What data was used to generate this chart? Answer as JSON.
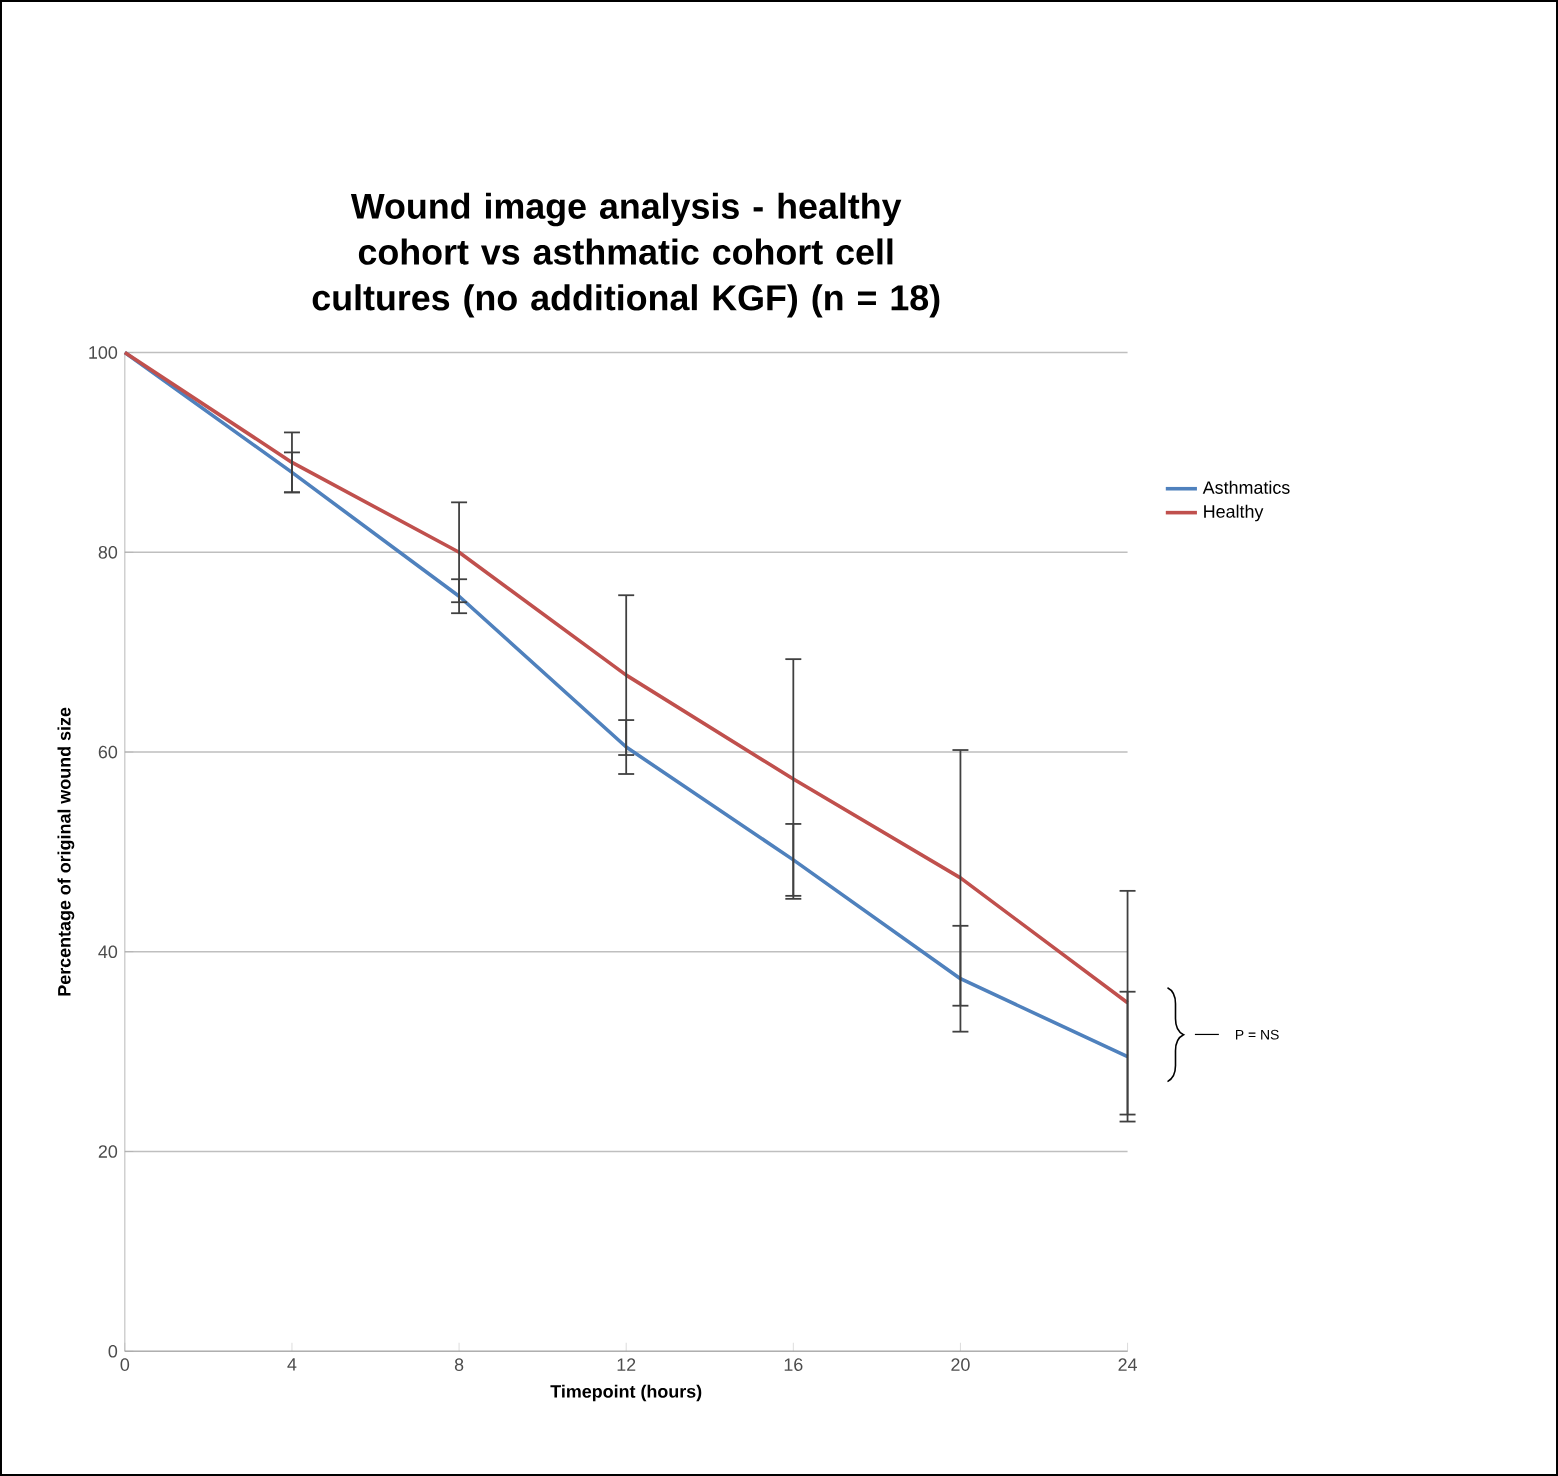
{
  "chart_data": {
    "type": "line",
    "title": "Wound image analysis - healthy cohort vs asthmatic cohort cell cultures (no additional KGF) (n = 18)",
    "xlabel": "Timepoint (hours)",
    "ylabel": "Percentage of original wound size",
    "x": [
      0,
      4,
      8,
      12,
      16,
      20,
      24
    ],
    "series": [
      {
        "name": "Asthmatics",
        "color": "#4f81bd",
        "values": [
          100,
          88,
          75.6,
          60.5,
          49.2,
          37.3,
          29.5
        ],
        "errors": [
          null,
          2,
          1.7,
          2.7,
          3.6,
          5.3,
          6.5
        ]
      },
      {
        "name": "Healthy",
        "color": "#c0504d",
        "values": [
          100,
          89,
          80,
          67.7,
          57.3,
          47.4,
          34.9
        ],
        "errors": [
          null,
          3,
          5,
          8,
          12,
          12.8,
          11.2
        ]
      }
    ],
    "xlim": [
      0,
      24
    ],
    "xticks": [
      0,
      4,
      8,
      12,
      16,
      20,
      24
    ],
    "ylim": [
      0,
      100
    ],
    "yticks": [
      0,
      20,
      40,
      60,
      80,
      100
    ],
    "grid": "y",
    "legend": "right",
    "marker": "none",
    "line_style": "solid",
    "annotations": [
      "P = NS"
    ]
  }
}
